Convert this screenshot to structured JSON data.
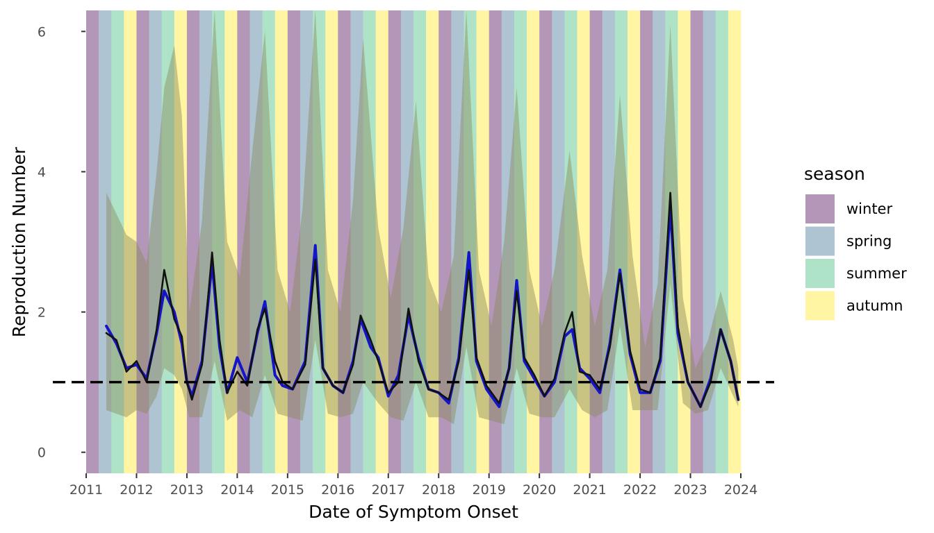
{
  "chart_data": {
    "type": "line",
    "title": "",
    "xlabel": "Date of Symptom Onset",
    "ylabel": "Reproduction Number",
    "xlim": [
      2011.0,
      2024.0
    ],
    "ylim": [
      -0.3,
      6.3
    ],
    "x_ticks": [
      2011,
      2012,
      2013,
      2014,
      2015,
      2016,
      2017,
      2018,
      2019,
      2020,
      2021,
      2022,
      2023,
      2024
    ],
    "x_tick_labels": [
      "2011",
      "2012",
      "2013",
      "2014",
      "2015",
      "2016",
      "2017",
      "2018",
      "2019",
      "2020",
      "2021",
      "2022",
      "2023",
      "2024"
    ],
    "y_ticks": [
      0,
      2,
      4,
      6
    ],
    "y_tick_labels": [
      "0",
      "2",
      "4",
      "6"
    ],
    "reference_line": {
      "y": 1,
      "style": "dashed",
      "color": "#000000"
    },
    "grid": false,
    "legend": {
      "title": "season",
      "position": "right",
      "entries": [
        {
          "label": "winter",
          "color": "#b497b8"
        },
        {
          "label": "spring",
          "color": "#aec4d2"
        },
        {
          "label": "summer",
          "color": "#aee3c8"
        },
        {
          "label": "autumn",
          "color": "#fff5a3"
        }
      ]
    },
    "season_bands": {
      "order": [
        "winter",
        "spring",
        "summer",
        "autumn"
      ],
      "start_year": 2011.0,
      "end_year": 2024.0,
      "quarter_length_years": 0.25
    },
    "uncertainty_band_color": "#8a8a5a",
    "series": [
      {
        "color": "#1414c8",
        "points": [
          [
            2011.4,
            1.8
          ],
          [
            2011.6,
            1.55
          ],
          [
            2011.8,
            1.2
          ],
          [
            2012.0,
            1.25
          ],
          [
            2012.2,
            1.05
          ],
          [
            2012.4,
            1.7
          ],
          [
            2012.55,
            2.3
          ],
          [
            2012.75,
            2.0
          ],
          [
            2012.9,
            1.55
          ],
          [
            2013.0,
            1.0
          ],
          [
            2013.1,
            0.8
          ],
          [
            2013.3,
            1.3
          ],
          [
            2013.5,
            2.7
          ],
          [
            2013.65,
            1.5
          ],
          [
            2013.8,
            0.85
          ],
          [
            2014.0,
            1.35
          ],
          [
            2014.2,
            1.0
          ],
          [
            2014.4,
            1.7
          ],
          [
            2014.55,
            2.15
          ],
          [
            2014.75,
            1.1
          ],
          [
            2014.9,
            0.95
          ],
          [
            2015.1,
            0.9
          ],
          [
            2015.35,
            1.3
          ],
          [
            2015.55,
            2.95
          ],
          [
            2015.7,
            1.2
          ],
          [
            2015.9,
            0.95
          ],
          [
            2016.1,
            0.85
          ],
          [
            2016.3,
            1.3
          ],
          [
            2016.45,
            1.9
          ],
          [
            2016.65,
            1.5
          ],
          [
            2016.8,
            1.35
          ],
          [
            2017.0,
            0.8
          ],
          [
            2017.2,
            1.1
          ],
          [
            2017.4,
            1.95
          ],
          [
            2017.6,
            1.35
          ],
          [
            2017.8,
            0.9
          ],
          [
            2018.0,
            0.85
          ],
          [
            2018.2,
            0.7
          ],
          [
            2018.4,
            1.35
          ],
          [
            2018.6,
            2.85
          ],
          [
            2018.75,
            1.3
          ],
          [
            2018.95,
            0.9
          ],
          [
            2019.2,
            0.65
          ],
          [
            2019.4,
            1.2
          ],
          [
            2019.55,
            2.45
          ],
          [
            2019.7,
            1.3
          ],
          [
            2019.9,
            1.05
          ],
          [
            2020.1,
            0.8
          ],
          [
            2020.3,
            1.0
          ],
          [
            2020.5,
            1.65
          ],
          [
            2020.65,
            1.75
          ],
          [
            2020.8,
            1.2
          ],
          [
            2021.0,
            1.05
          ],
          [
            2021.2,
            0.85
          ],
          [
            2021.4,
            1.55
          ],
          [
            2021.6,
            2.6
          ],
          [
            2021.8,
            1.4
          ],
          [
            2022.0,
            0.85
          ],
          [
            2022.2,
            0.85
          ],
          [
            2022.4,
            1.3
          ],
          [
            2022.6,
            3.5
          ],
          [
            2022.75,
            1.7
          ],
          [
            2022.95,
            1.0
          ],
          [
            2023.2,
            0.65
          ],
          [
            2023.4,
            1.05
          ],
          [
            2023.6,
            1.75
          ],
          [
            2023.8,
            1.3
          ],
          [
            2023.95,
            0.75
          ]
        ]
      },
      {
        "color": "#111111",
        "points": [
          [
            2011.4,
            1.7
          ],
          [
            2011.6,
            1.6
          ],
          [
            2011.8,
            1.15
          ],
          [
            2012.0,
            1.3
          ],
          [
            2012.2,
            1.0
          ],
          [
            2012.4,
            1.75
          ],
          [
            2012.55,
            2.6
          ],
          [
            2012.75,
            1.9
          ],
          [
            2012.9,
            1.65
          ],
          [
            2013.0,
            1.0
          ],
          [
            2013.1,
            0.75
          ],
          [
            2013.3,
            1.25
          ],
          [
            2013.5,
            2.85
          ],
          [
            2013.65,
            1.6
          ],
          [
            2013.8,
            0.85
          ],
          [
            2014.0,
            1.15
          ],
          [
            2014.2,
            0.95
          ],
          [
            2014.4,
            1.75
          ],
          [
            2014.55,
            2.05
          ],
          [
            2014.75,
            1.3
          ],
          [
            2014.9,
            1.0
          ],
          [
            2015.1,
            0.9
          ],
          [
            2015.35,
            1.25
          ],
          [
            2015.55,
            2.75
          ],
          [
            2015.7,
            1.2
          ],
          [
            2015.9,
            0.95
          ],
          [
            2016.1,
            0.85
          ],
          [
            2016.3,
            1.25
          ],
          [
            2016.45,
            1.95
          ],
          [
            2016.65,
            1.6
          ],
          [
            2016.8,
            1.3
          ],
          [
            2017.0,
            0.85
          ],
          [
            2017.2,
            1.0
          ],
          [
            2017.4,
            2.05
          ],
          [
            2017.6,
            1.3
          ],
          [
            2017.8,
            0.9
          ],
          [
            2018.0,
            0.85
          ],
          [
            2018.2,
            0.75
          ],
          [
            2018.4,
            1.3
          ],
          [
            2018.6,
            2.6
          ],
          [
            2018.75,
            1.35
          ],
          [
            2018.95,
            0.95
          ],
          [
            2019.2,
            0.7
          ],
          [
            2019.4,
            1.2
          ],
          [
            2019.55,
            2.3
          ],
          [
            2019.7,
            1.35
          ],
          [
            2019.9,
            1.1
          ],
          [
            2020.1,
            0.8
          ],
          [
            2020.3,
            1.05
          ],
          [
            2020.5,
            1.7
          ],
          [
            2020.65,
            2.0
          ],
          [
            2020.8,
            1.15
          ],
          [
            2021.0,
            1.1
          ],
          [
            2021.2,
            0.9
          ],
          [
            2021.4,
            1.5
          ],
          [
            2021.6,
            2.55
          ],
          [
            2021.8,
            1.45
          ],
          [
            2022.0,
            0.9
          ],
          [
            2022.2,
            0.85
          ],
          [
            2022.4,
            1.35
          ],
          [
            2022.6,
            3.7
          ],
          [
            2022.75,
            1.8
          ],
          [
            2022.95,
            1.0
          ],
          [
            2023.2,
            0.65
          ],
          [
            2023.4,
            1.0
          ],
          [
            2023.6,
            1.75
          ],
          [
            2023.8,
            1.3
          ],
          [
            2023.95,
            0.75
          ]
        ]
      }
    ],
    "band": {
      "x": [
        2011.4,
        2011.6,
        2011.8,
        2012.0,
        2012.2,
        2012.4,
        2012.55,
        2012.75,
        2012.9,
        2013.05,
        2013.3,
        2013.55,
        2013.8,
        2014.05,
        2014.3,
        2014.55,
        2014.8,
        2015.05,
        2015.3,
        2015.55,
        2015.8,
        2016.05,
        2016.3,
        2016.5,
        2016.8,
        2017.05,
        2017.3,
        2017.55,
        2017.8,
        2018.05,
        2018.3,
        2018.55,
        2018.8,
        2019.05,
        2019.3,
        2019.55,
        2019.8,
        2020.05,
        2020.3,
        2020.6,
        2020.85,
        2021.1,
        2021.35,
        2021.6,
        2021.85,
        2022.1,
        2022.35,
        2022.6,
        2022.85,
        2023.1,
        2023.35,
        2023.6,
        2023.85,
        2023.95
      ],
      "upper": [
        3.7,
        3.4,
        3.1,
        3.0,
        2.7,
        4.0,
        5.2,
        5.8,
        4.8,
        2.0,
        3.3,
        6.3,
        3.0,
        2.5,
        4.3,
        6.0,
        2.6,
        2.0,
        3.5,
        6.3,
        2.6,
        2.0,
        3.6,
        5.9,
        3.2,
        2.2,
        3.2,
        5.0,
        2.5,
        2.0,
        2.8,
        6.3,
        2.6,
        1.8,
        3.0,
        5.2,
        2.6,
        1.8,
        2.6,
        4.3,
        2.8,
        1.8,
        2.6,
        5.1,
        2.8,
        1.5,
        2.4,
        6.1,
        2.2,
        1.2,
        1.6,
        2.3,
        1.6,
        1.2
      ],
      "lower": [
        0.6,
        0.55,
        0.5,
        0.6,
        0.55,
        0.8,
        1.2,
        1.1,
        0.9,
        0.5,
        0.5,
        1.3,
        0.45,
        0.6,
        0.5,
        1.1,
        0.55,
        0.5,
        0.45,
        1.6,
        0.55,
        0.5,
        0.55,
        1.0,
        0.7,
        0.5,
        0.45,
        1.0,
        0.5,
        0.5,
        0.4,
        1.5,
        0.5,
        0.45,
        0.4,
        1.2,
        0.55,
        0.5,
        0.5,
        0.9,
        0.6,
        0.5,
        0.6,
        1.8,
        0.6,
        0.6,
        0.6,
        2.4,
        0.7,
        0.55,
        0.6,
        1.2,
        0.8,
        0.65
      ]
    }
  }
}
